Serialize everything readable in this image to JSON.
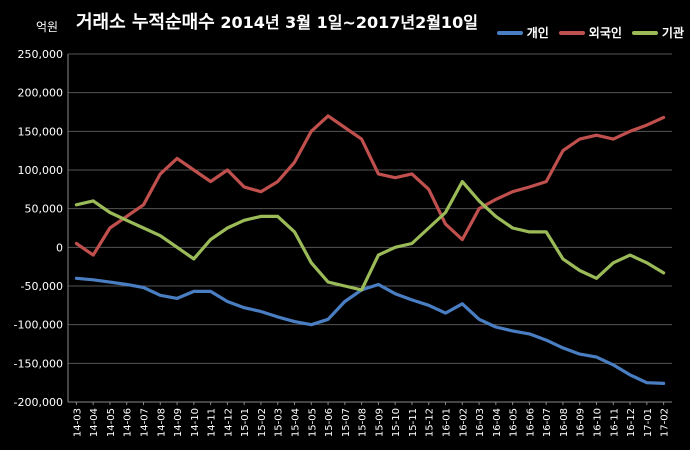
{
  "chart_data": {
    "type": "line",
    "title": "거래소 누적순매수",
    "subtitle": "2014년 3월 1일~2017년2월10일",
    "ylabel": "억원",
    "xlabel": "",
    "ylim": [
      -200000,
      250000
    ],
    "yticks": [
      -200000,
      -150000,
      -100000,
      -50000,
      0,
      50000,
      100000,
      150000,
      200000,
      250000
    ],
    "ytick_labels": [
      "-200,000",
      "-150,000",
      "-100,000",
      "-50,000",
      "0",
      "50,000",
      "100,000",
      "150,000",
      "200,000",
      "250,000"
    ],
    "grid": true,
    "legend_position": "top-right",
    "categories": [
      "14-03",
      "14-04",
      "14-05",
      "14-06",
      "14-07",
      "14-08",
      "14-09",
      "14-10",
      "14-11",
      "14-12",
      "15-01",
      "15-02",
      "15-03",
      "15-04",
      "15-05",
      "15-06",
      "15-07",
      "15-08",
      "15-09",
      "15-10",
      "15-11",
      "15-12",
      "16-01",
      "16-02",
      "16-03",
      "16-04",
      "16-05",
      "16-06",
      "16-07",
      "16-08",
      "16-09",
      "16-10",
      "16-11",
      "16-12",
      "17-01",
      "17-02"
    ],
    "series": [
      {
        "name": "개인",
        "color": "#4A7EC2",
        "values": [
          -40000,
          -42000,
          -45000,
          -48000,
          -52000,
          -62000,
          -66000,
          -57000,
          -57000,
          -70000,
          -78000,
          -83000,
          -90000,
          -96000,
          -100000,
          -93000,
          -70000,
          -55000,
          -48000,
          -60000,
          -68000,
          -75000,
          -85000,
          -73000,
          -93000,
          -103000,
          -108000,
          -112000,
          -120000,
          -130000,
          -138000,
          -142000,
          -152000,
          -165000,
          -175000,
          -176000
        ]
      },
      {
        "name": "외국인",
        "color": "#C0504D",
        "values": [
          5000,
          -10000,
          25000,
          40000,
          55000,
          95000,
          115000,
          100000,
          85000,
          100000,
          78000,
          72000,
          85000,
          110000,
          150000,
          170000,
          155000,
          140000,
          95000,
          90000,
          95000,
          75000,
          30000,
          10000,
          50000,
          62000,
          72000,
          78000,
          85000,
          125000,
          140000,
          145000,
          140000,
          150000,
          158000,
          168000
        ]
      },
      {
        "name": "기관",
        "color": "#9BBB59",
        "values": [
          55000,
          60000,
          45000,
          35000,
          25000,
          15000,
          0,
          -15000,
          10000,
          25000,
          35000,
          40000,
          40000,
          20000,
          -20000,
          -45000,
          -50000,
          -55000,
          -10000,
          0,
          5000,
          25000,
          45000,
          85000,
          60000,
          40000,
          25000,
          20000,
          20000,
          -15000,
          -30000,
          -40000,
          -20000,
          -10000,
          -20000,
          -33000
        ]
      }
    ]
  }
}
